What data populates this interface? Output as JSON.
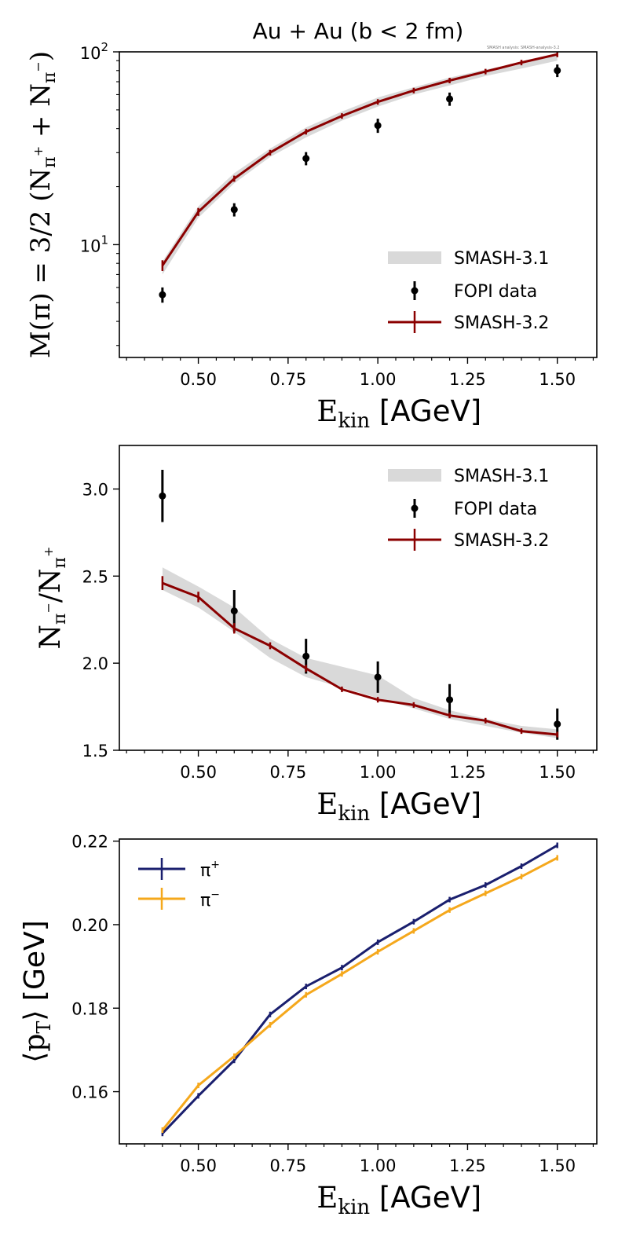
{
  "figure": {
    "title": "Au + Au (b < 2 fm)",
    "annotation": "SMASH analysis: SMASH-analysis-3.2"
  },
  "colors": {
    "smash31_band": "#d9d9d9",
    "fopi": "#000000",
    "smash32": "#8b0000",
    "pi_plus": "#1a1f6e",
    "pi_minus": "#f5a81c"
  },
  "chart_data": [
    {
      "type": "line",
      "name": "multiplicity",
      "title": "Au + Au (b < 2 fm)",
      "xlabel": "E_kin [AGeV]",
      "xlabel_main": "E",
      "xlabel_sub": "kin",
      "xlabel_unit": " [AGeV]",
      "ylabel": "M(π) = 3/2 (N_π⁺ + N_π⁻)",
      "ylabel_main": "M(π) = 3/2 (N",
      "ylabel_mid": " + N",
      "ylabel_end": ")",
      "ylabel_sub1": "π",
      "ylabel_sup1": "+",
      "ylabel_sub2": "π",
      "ylabel_sup2": "−",
      "yscale": "log",
      "xlim": [
        0.28,
        1.61
      ],
      "ylim": [
        2.6,
        100
      ],
      "xticks": [
        0.5,
        0.75,
        1.0,
        1.25,
        1.5
      ],
      "xtick_labels": [
        "0.50",
        "0.75",
        "1.00",
        "1.25",
        "1.50"
      ],
      "yticks": [
        10,
        100
      ],
      "ytick_labels": [
        {
          "base": "10",
          "exp": "1"
        },
        {
          "base": "10",
          "exp": "2"
        }
      ],
      "legend_position": "bottom-right",
      "legend": [
        "SMASH-3.1",
        "FOPI data",
        "SMASH-3.2"
      ],
      "series": [
        {
          "name": "SMASH-3.1",
          "kind": "band",
          "x": [
            0.4,
            0.5,
            0.6,
            0.7,
            0.8,
            0.9,
            1.0,
            1.1,
            1.2,
            1.3,
            1.4,
            1.5
          ],
          "lo": [
            7.0,
            13.8,
            20.8,
            28.5,
            36.0,
            44.0,
            52.0,
            60.0,
            67.0,
            75.0,
            82.0,
            90.0
          ],
          "hi": [
            8.2,
            15.8,
            23.5,
            31.5,
            40.5,
            49.0,
            58.0,
            65.5,
            73.5,
            81.0,
            88.0,
            96.0
          ]
        },
        {
          "name": "FOPI data",
          "kind": "errorbar",
          "x": [
            0.4,
            0.6,
            0.8,
            1.0,
            1.2,
            1.5
          ],
          "y": [
            5.5,
            15.2,
            28.0,
            41.5,
            57.0,
            80.0
          ],
          "err": [
            0.5,
            1.2,
            2.2,
            3.5,
            4.5,
            6.0
          ]
        },
        {
          "name": "SMASH-3.2",
          "kind": "line",
          "x": [
            0.4,
            0.5,
            0.6,
            0.7,
            0.8,
            0.9,
            1.0,
            1.1,
            1.2,
            1.3,
            1.4,
            1.5
          ],
          "y": [
            7.8,
            14.8,
            22.0,
            30.0,
            38.5,
            46.5,
            55.0,
            63.0,
            71.0,
            79.0,
            88.0,
            97.0
          ],
          "err": [
            0.5,
            0.7,
            0.8,
            0.8,
            0.9,
            0.9,
            1.0,
            1.0,
            1.1,
            1.1,
            1.1,
            1.2
          ]
        }
      ]
    },
    {
      "type": "line",
      "name": "ratio",
      "xlabel": "E_kin [AGeV]",
      "xlabel_main": "E",
      "xlabel_sub": "kin",
      "xlabel_unit": " [AGeV]",
      "ylabel": "N_π⁻/N_π⁺",
      "ylabel_a": "N",
      "ylabel_sub1": "π",
      "ylabel_sup1": "−",
      "ylabel_b": "/N",
      "ylabel_sub2": "π",
      "ylabel_sup2": "+",
      "yscale": "linear",
      "xlim": [
        0.28,
        1.61
      ],
      "ylim": [
        1.5,
        3.25
      ],
      "xticks": [
        0.5,
        0.75,
        1.0,
        1.25,
        1.5
      ],
      "xtick_labels": [
        "0.50",
        "0.75",
        "1.00",
        "1.25",
        "1.50"
      ],
      "yticks": [
        1.5,
        2.0,
        2.5,
        3.0
      ],
      "ytick_labels": [
        "1.5",
        "2.0",
        "2.5",
        "3.0"
      ],
      "legend_position": "top-right",
      "legend": [
        "SMASH-3.1",
        "FOPI data",
        "SMASH-3.2"
      ],
      "series": [
        {
          "name": "SMASH-3.1",
          "kind": "band",
          "x": [
            0.4,
            0.5,
            0.6,
            0.7,
            0.8,
            0.9,
            1.0,
            1.1,
            1.2,
            1.3,
            1.4,
            1.5
          ],
          "lo": [
            2.42,
            2.32,
            2.18,
            2.03,
            1.92,
            1.86,
            1.8,
            1.74,
            1.68,
            1.64,
            1.6,
            1.57
          ],
          "hi": [
            2.55,
            2.44,
            2.32,
            2.14,
            2.03,
            1.98,
            1.93,
            1.8,
            1.73,
            1.68,
            1.64,
            1.62
          ]
        },
        {
          "name": "FOPI data",
          "kind": "errorbar",
          "x": [
            0.4,
            0.6,
            0.8,
            1.0,
            1.2,
            1.5
          ],
          "y": [
            2.96,
            2.3,
            2.04,
            1.92,
            1.79,
            1.65
          ],
          "err": [
            0.15,
            0.12,
            0.1,
            0.09,
            0.09,
            0.09
          ]
        },
        {
          "name": "SMASH-3.2",
          "kind": "line",
          "x": [
            0.4,
            0.5,
            0.6,
            0.7,
            0.8,
            0.9,
            1.0,
            1.1,
            1.2,
            1.3,
            1.4,
            1.5
          ],
          "y": [
            2.46,
            2.38,
            2.2,
            2.1,
            1.97,
            1.85,
            1.79,
            1.76,
            1.7,
            1.67,
            1.61,
            1.59
          ],
          "err": [
            0.04,
            0.03,
            0.03,
            0.02,
            0.02,
            0.01,
            0.01,
            0.01,
            0.01,
            0.01,
            0.01,
            0.01
          ]
        }
      ]
    },
    {
      "type": "line",
      "name": "mean-pt",
      "xlabel": "E_kin [AGeV]",
      "xlabel_main": "E",
      "xlabel_sub": "kin",
      "xlabel_unit": " [AGeV]",
      "ylabel": "⟨p_T⟩ [GeV]",
      "ylabel_a": "⟨p",
      "ylabel_sub": "T",
      "ylabel_b": "⟩",
      "ylabel_unit": " [GeV]",
      "yscale": "linear",
      "xlim": [
        0.28,
        1.61
      ],
      "ylim": [
        0.1475,
        0.2205
      ],
      "xticks": [
        0.5,
        0.75,
        1.0,
        1.25,
        1.5
      ],
      "xtick_labels": [
        "0.50",
        "0.75",
        "1.00",
        "1.25",
        "1.50"
      ],
      "yticks": [
        0.16,
        0.18,
        0.2,
        0.22
      ],
      "ytick_labels": [
        "0.16",
        "0.18",
        "0.20",
        "0.22"
      ],
      "legend_position": "top-left",
      "legend": [
        "π+",
        "π−"
      ],
      "legend_sup": [
        "+",
        "−"
      ],
      "series": [
        {
          "name": "π+",
          "kind": "line",
          "x": [
            0.4,
            0.5,
            0.6,
            0.7,
            0.8,
            0.9,
            1.0,
            1.1,
            1.2,
            1.3,
            1.4,
            1.5
          ],
          "y": [
            0.15,
            0.159,
            0.1675,
            0.1785,
            0.1852,
            0.1897,
            0.1958,
            0.2007,
            0.206,
            0.2095,
            0.214,
            0.219
          ],
          "err": [
            0.0006,
            0.0005,
            0.0005,
            0.0005,
            0.0004,
            0.0004,
            0.0004,
            0.0004,
            0.0004,
            0.0003,
            0.0003,
            0.0003
          ]
        },
        {
          "name": "π−",
          "kind": "line",
          "x": [
            0.4,
            0.5,
            0.6,
            0.7,
            0.8,
            0.9,
            1.0,
            1.1,
            1.2,
            1.3,
            1.4,
            1.5
          ],
          "y": [
            0.1508,
            0.1615,
            0.1685,
            0.176,
            0.1832,
            0.1882,
            0.1935,
            0.1985,
            0.2035,
            0.2075,
            0.2115,
            0.216
          ],
          "err": [
            0.0003,
            0.0003,
            0.0003,
            0.0003,
            0.0003,
            0.0003,
            0.0003,
            0.0003,
            0.0003,
            0.0003,
            0.0003,
            0.0003
          ]
        }
      ]
    }
  ]
}
